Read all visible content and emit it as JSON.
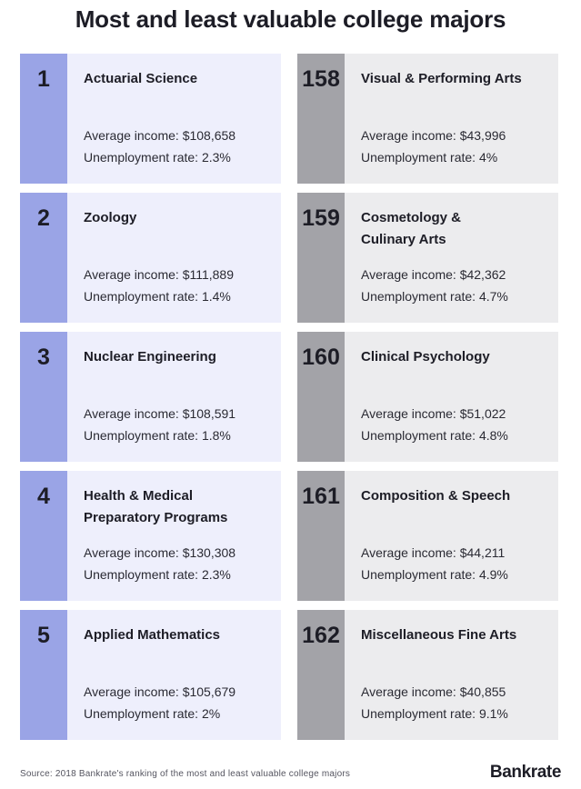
{
  "title": "Most and least valuable college majors",
  "colors": {
    "most_accent": "#9aa4e6",
    "most_bg": "#eeeffc",
    "least_accent": "#a3a3a8",
    "least_bg": "#ececee"
  },
  "most": [
    {
      "rank": "1",
      "major": "Actuarial Science",
      "income": "Average income: $108,658",
      "unemployment": "Unemployment rate: 2.3%"
    },
    {
      "rank": "2",
      "major": "Zoology",
      "income": "Average income: $111,889",
      "unemployment": "Unemployment rate: 1.4%"
    },
    {
      "rank": "3",
      "major": "Nuclear Engineering",
      "income": "Average income: $108,591",
      "unemployment": "Unemployment rate: 1.8%"
    },
    {
      "rank": "4",
      "major": "Health & Medical Preparatory Programs",
      "income": "Average income: $130,308",
      "unemployment": "Unemployment rate: 2.3%"
    },
    {
      "rank": "5",
      "major": "Applied Mathematics",
      "income": "Average income: $105,679",
      "unemployment": "Unemployment rate: 2%"
    }
  ],
  "least": [
    {
      "rank": "158",
      "major": "Visual & Performing Arts",
      "income": "Average income: $43,996",
      "unemployment": "Unemployment rate: 4%"
    },
    {
      "rank": "159",
      "major": "Cosmetology & Culinary Arts",
      "income": "Average income: $42,362",
      "unemployment": "Unemployment rate: 4.7%"
    },
    {
      "rank": "160",
      "major": "Clinical Psychology",
      "income": "Average income: $51,022",
      "unemployment": "Unemployment rate: 4.8%"
    },
    {
      "rank": "161",
      "major": "Composition & Speech",
      "income": "Average income: $44,211",
      "unemployment": "Unemployment rate: 4.9%"
    },
    {
      "rank": "162",
      "major": "Miscellaneous Fine Arts",
      "income": "Average income: $40,855",
      "unemployment": "Unemployment rate: 9.1%"
    }
  ],
  "footer": {
    "source": "Source: 2018 Bankrate's ranking of the most and least valuable college majors",
    "brand": "Bankrate"
  }
}
